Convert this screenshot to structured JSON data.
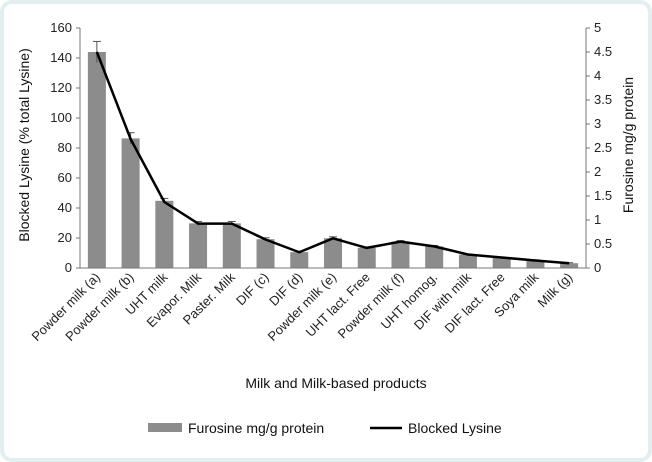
{
  "chart_data": {
    "type": "bar",
    "categories": [
      "Powder milk (a)",
      "Powder milk (b)",
      "UHT milk",
      "Evapor. Milk",
      "Paster. Milk",
      "DIF (c)",
      "DIF (d)",
      "Powder milk (e)",
      "UHT lact. Free",
      "Powder milk (f)",
      "UHT homog.",
      "DIF with milk",
      "DIF lact. Free",
      "Soya milk",
      "Milk (g)"
    ],
    "series": [
      {
        "name": "Furosine mg/g protein",
        "type": "bar",
        "axis": "right",
        "values": [
          4.5,
          2.7,
          1.4,
          0.93,
          0.93,
          0.6,
          0.33,
          0.62,
          0.42,
          0.55,
          0.45,
          0.28,
          0.22,
          0.16,
          0.1
        ],
        "error": [
          0.22,
          0.12,
          0.05,
          0.04,
          0.04,
          0.03,
          0.02,
          0.03,
          0.02,
          0.02,
          0.02,
          0.01,
          0.01,
          0.01,
          0.01
        ],
        "color": "#8c8c8c"
      },
      {
        "name": "Blocked Lysine",
        "type": "line",
        "axis": "left",
        "values": [
          144,
          86,
          44,
          29.6,
          29.6,
          19,
          10.5,
          19.8,
          13.4,
          17.6,
          14.4,
          9,
          7,
          5,
          3.2
        ],
        "color": "#000000"
      }
    ],
    "xlabel": "Milk and Milk-based products",
    "ylabel": "Blocked Lysine (% total Lysine)",
    "y2label": "Furosine mg/g protein",
    "ylim": [
      0,
      160
    ],
    "yticks": [
      "0",
      "20",
      "40",
      "60",
      "80",
      "100",
      "120",
      "140",
      "160"
    ],
    "y2lim": [
      0,
      5
    ],
    "y2ticks": [
      "0",
      "0.5",
      "1",
      "1.5",
      "2",
      "2.5",
      "3",
      "3.5",
      "4",
      "4.5",
      "5"
    ],
    "grid": false,
    "legend": "bottom"
  }
}
